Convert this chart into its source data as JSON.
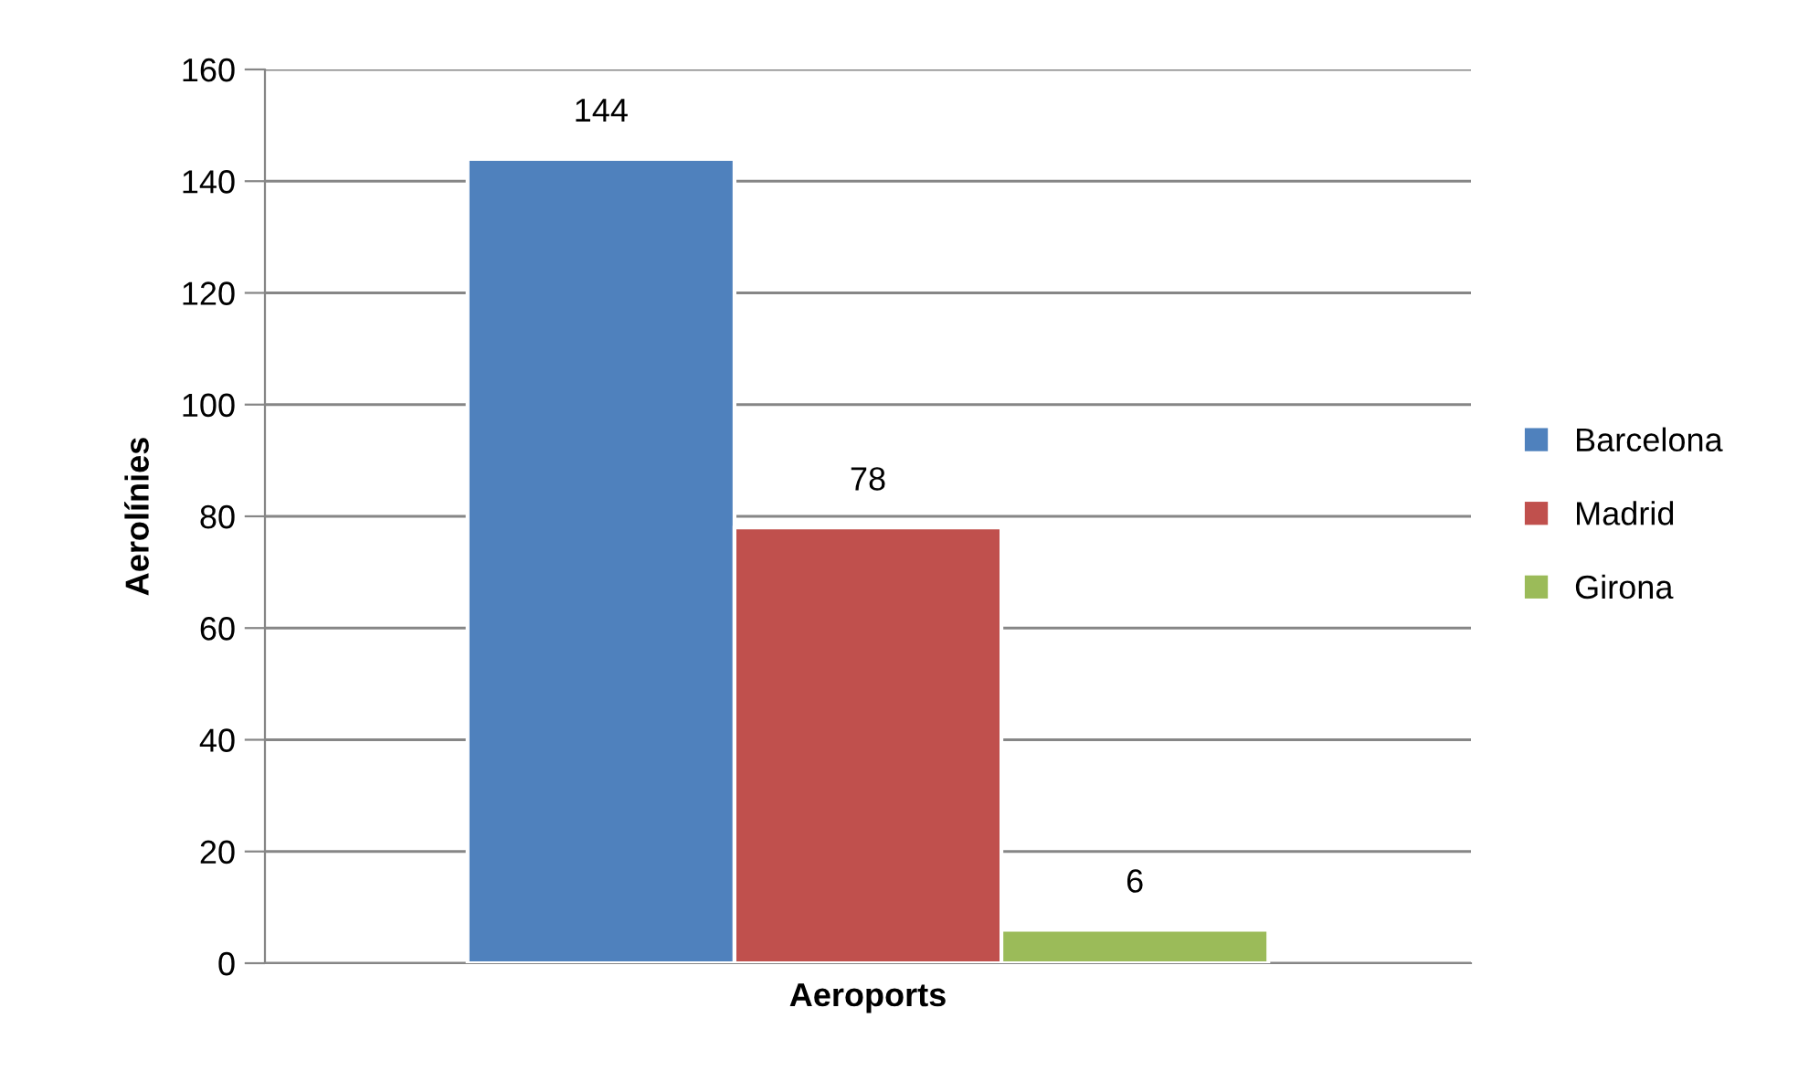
{
  "chart_data": {
    "type": "bar",
    "xlabel": "Aeroports",
    "ylabel": "Aerolínies",
    "categories": [
      null
    ],
    "series": [
      {
        "name": "Barcelona",
        "color": "#4f81bd",
        "values": [
          144
        ]
      },
      {
        "name": "Madrid",
        "color": "#c0504d",
        "values": [
          78
        ]
      },
      {
        "name": "Girona",
        "color": "#9bbb59",
        "values": [
          6
        ]
      }
    ],
    "ylim": [
      0,
      160
    ],
    "yticks": [
      0,
      20,
      40,
      60,
      80,
      100,
      120,
      140,
      160
    ],
    "grid": "y",
    "legend": "right",
    "data_labels": true
  }
}
